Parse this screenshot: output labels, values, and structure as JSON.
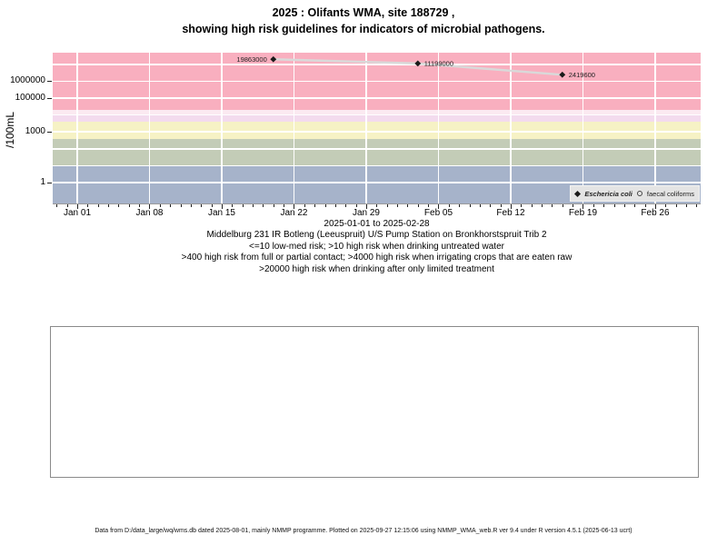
{
  "title": {
    "line1": "2025 : Olifants WMA, site 188729 ,",
    "line2": "showing high risk guidelines for indicators of microbial pathogens."
  },
  "y_axis": {
    "label": "/100mL",
    "ticks": [
      {
        "value": 1,
        "label": "1"
      },
      {
        "value": 1000,
        "label": "1000"
      },
      {
        "value": 100000,
        "label": "100000"
      },
      {
        "value": 1000000,
        "label": "1000000"
      }
    ]
  },
  "x_axis": {
    "major_ticks": [
      {
        "day": 0,
        "label": "Jan 01"
      },
      {
        "day": 7,
        "label": "Jan 08"
      },
      {
        "day": 14,
        "label": "Jan 15"
      },
      {
        "day": 21,
        "label": "Jan 22"
      },
      {
        "day": 28,
        "label": "Jan 29"
      },
      {
        "day": 35,
        "label": "Feb 05"
      },
      {
        "day": 42,
        "label": "Feb 12"
      },
      {
        "day": 49,
        "label": "Feb 19"
      },
      {
        "day": 56,
        "label": "Feb 26"
      }
    ],
    "minor_tick_days": {
      "from": -2,
      "to": 60
    }
  },
  "chart_data": {
    "type": "scatter",
    "title": "2025 : Olifants WMA, site 188729 , showing high risk guidelines for indicators of microbial pathogens.",
    "ylabel": "/100mL",
    "y_scale": "log10",
    "x_range": [
      "2025-01-01",
      "2025-02-28"
    ],
    "grid": true,
    "legend_position": "bottom-right",
    "series": [
      {
        "name": "Eschericia coli",
        "marker": "filled-diamond",
        "marker_color": "#1a1a1a",
        "line_color": "#d9d9d9",
        "points": [
          {
            "date": "2025-01-20",
            "value": 19863000,
            "label": "19863000",
            "label_side": "left"
          },
          {
            "date": "2025-02-03",
            "value": 11199000,
            "label": "11199000",
            "label_side": "right"
          },
          {
            "date": "2025-02-17",
            "value": 2419600,
            "label": "2419600",
            "label_side": "right"
          }
        ]
      },
      {
        "name": "faecal coliforms",
        "marker": "open-circle",
        "marker_color": "#555555",
        "points": []
      }
    ],
    "guideline_bands": [
      {
        "max": 10,
        "color": "#a6b3ca"
      },
      {
        "min": 10,
        "max": 400,
        "color": "#c3ccb7"
      },
      {
        "min": 400,
        "max": 4000,
        "color": "#f6f2c5"
      },
      {
        "min": 4000,
        "max": 10000,
        "color": "#f3dbee"
      },
      {
        "min": 10000,
        "max": 20000,
        "color": "#fbe9f1"
      },
      {
        "min": 20000,
        "color": "#f9afbf"
      }
    ]
  },
  "legend": {
    "items": [
      {
        "symbol": "filled-diamond",
        "label": "Eschericia coli"
      },
      {
        "symbol": "open-circle",
        "label": "faecal coliforms"
      }
    ],
    "background": "#e4e4e4"
  },
  "captions": {
    "date_range": "2025-01-01 to 2025-02-28",
    "site": "Middelburg 231 IR Botleng (Leeuspruit) U/S Pump Station on Bronkhorstspruit Trib 2",
    "guideline1": "<=10 low-med risk; >10 high risk when drinking untreated water",
    "guideline2": ">400 high risk from full or partial contact; >4000 high risk when irrigating crops that are eaten raw",
    "guideline3": ">20000 high risk when drinking after only limited treatment"
  },
  "footer": "Data from D:/data_large/wq/wms.db dated 2025-08-01, mainly NMMP programme. Plotted on 2025-09-27 12:15:06 using NMMP_WMA_web.R ver 9.4 under R version 4.5.1 (2025-06-13 ucrt)"
}
